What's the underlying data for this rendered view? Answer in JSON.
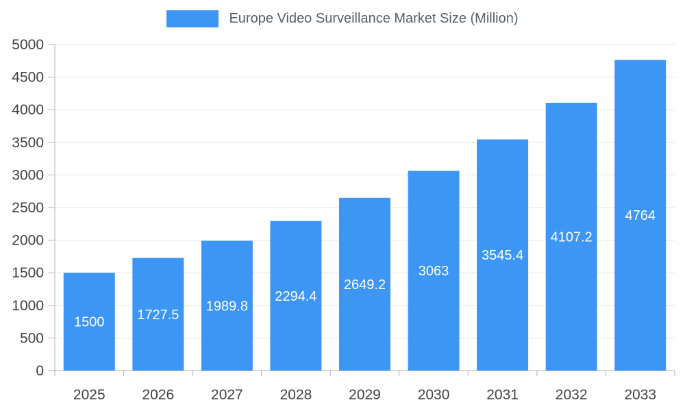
{
  "chart_data": {
    "type": "bar",
    "title": "Europe Video Surveillance Market Size (Million)",
    "categories": [
      "2025",
      "2026",
      "2027",
      "2028",
      "2029",
      "2030",
      "2031",
      "2032",
      "2033"
    ],
    "values": [
      1500,
      1727.5,
      1989.8,
      2294.4,
      2649.2,
      3063,
      3545.4,
      4107.2,
      4764
    ],
    "value_labels": [
      "1500",
      "1727.5",
      "1989.8",
      "2294.4",
      "2649.2",
      "3063",
      "3545.4",
      "4107.2",
      "4764"
    ],
    "ylim": [
      0,
      5000
    ],
    "ytick_step": 500,
    "ytick_labels": [
      "0",
      "500",
      "1000",
      "1500",
      "2000",
      "2500",
      "3000",
      "3500",
      "4000",
      "4500",
      "5000"
    ],
    "legend_position": "top",
    "grid": true,
    "colors": {
      "bar": "#3E96F4",
      "bar_label": "#FFFFFF",
      "axis_text": "#404040",
      "legend_text": "#545F69",
      "gridline": "#E3E3E3",
      "axis_line": "#B3B3B3"
    }
  }
}
